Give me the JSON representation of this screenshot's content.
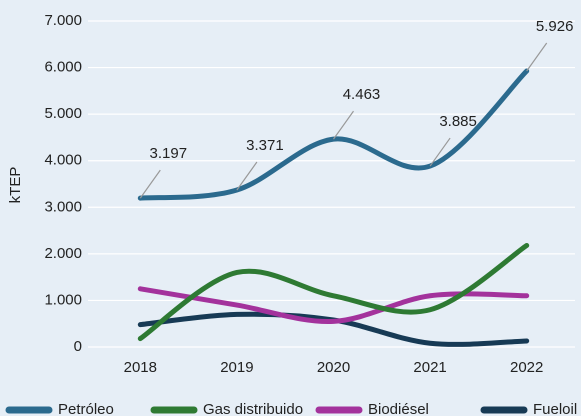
{
  "chart_data": {
    "type": "line",
    "y_label": "kTEP",
    "categories": [
      "2018",
      "2019",
      "2020",
      "2021",
      "2022"
    ],
    "series": [
      {
        "name": "Petróleo",
        "color": "#2b6a8e",
        "values": [
          3197,
          3371,
          4463,
          3885,
          5926
        ],
        "value_labels": [
          "3.197",
          "3.371",
          "4.463",
          "3.885",
          "5.926"
        ]
      },
      {
        "name": "Gas distribuido",
        "color": "#2e7a33",
        "values": [
          180,
          1600,
          1100,
          800,
          2180
        ]
      },
      {
        "name": "Biodiésel",
        "color": "#a3329c",
        "values": [
          1250,
          900,
          550,
          1100,
          1100
        ]
      },
      {
        "name": "Fueloil",
        "color": "#173a55",
        "values": [
          480,
          700,
          580,
          80,
          130
        ]
      }
    ],
    "ylim": [
      0,
      7000
    ],
    "yticks": [
      0,
      {
        "value": 1000,
        "label": "1.000"
      },
      {
        "value": 2000,
        "label": "2.000"
      },
      {
        "value": 3000,
        "label": "3.000"
      },
      {
        "value": 4000,
        "label": "4.000"
      },
      {
        "value": 5000,
        "label": "5.000"
      },
      {
        "value": 6000,
        "label": "6.000"
      },
      {
        "value": 7000,
        "label": "7.000"
      }
    ],
    "grid": true
  }
}
